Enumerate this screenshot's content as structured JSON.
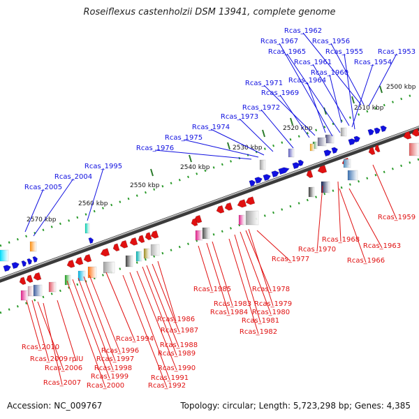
{
  "title": "Roseiflexus castenholzii DSM 13941, complete genome",
  "footer": {
    "accession": "Accession: NC_009767",
    "summary": "Topology: circular; Length: 5,723,298 bp; Genes: 4,385"
  },
  "colors": {
    "forward": "#1010e0",
    "reverse": "#e01010",
    "backbone": "#707070",
    "tick_dot": "#2a9a2a",
    "tick_major": "#2a7a2a"
  },
  "bp_labels": [
    "2500 kbp",
    "2510 kbp",
    "2520 kbp",
    "2530 kbp",
    "2540 kbp",
    "2550 kbp",
    "2560 kbp",
    "2570 kbp"
  ],
  "forward_genes": [
    "Rcas_1962",
    "Rcas_1956",
    "Rcas_1953",
    "Rcas_1967",
    "Rcas_1965",
    "Rcas_1955",
    "Rcas_1961",
    "Rcas_1954",
    "Rcas_1960",
    "Rcas_1971",
    "Rcas_1964",
    "Rcas_1969",
    "Rcas_1972",
    "Rcas_1973",
    "Rcas_1974",
    "Rcas_1975",
    "Rcas_1976",
    "Rcas_1995",
    "Rcas_2004",
    "Rcas_2005"
  ],
  "reverse_genes": [
    "Rcas_1959",
    "Rcas_1970",
    "Rcas_1968",
    "Rcas_1963",
    "Rcas_1966",
    "Rcas_1977",
    "Rcas_1978",
    "Rcas_1985",
    "Rcas_1979",
    "Rcas_1983",
    "Rcas_1980",
    "Rcas_1984",
    "Rcas_1981",
    "Rcas_1982",
    "Rcas_1986",
    "Rcas_1987",
    "Rcas_1994",
    "Rcas_1988",
    "Rcas_1996",
    "Rcas_1989",
    "Rcas_1997",
    "Rcas_1990",
    "Rcas_1998",
    "Rcas_1991",
    "Rcas_1999",
    "Rcas_1992",
    "Rcas_2000",
    "Rcas_2010",
    "Rcas_2009",
    "rplU",
    "Rcas_2006",
    "Rcas_2007"
  ]
}
